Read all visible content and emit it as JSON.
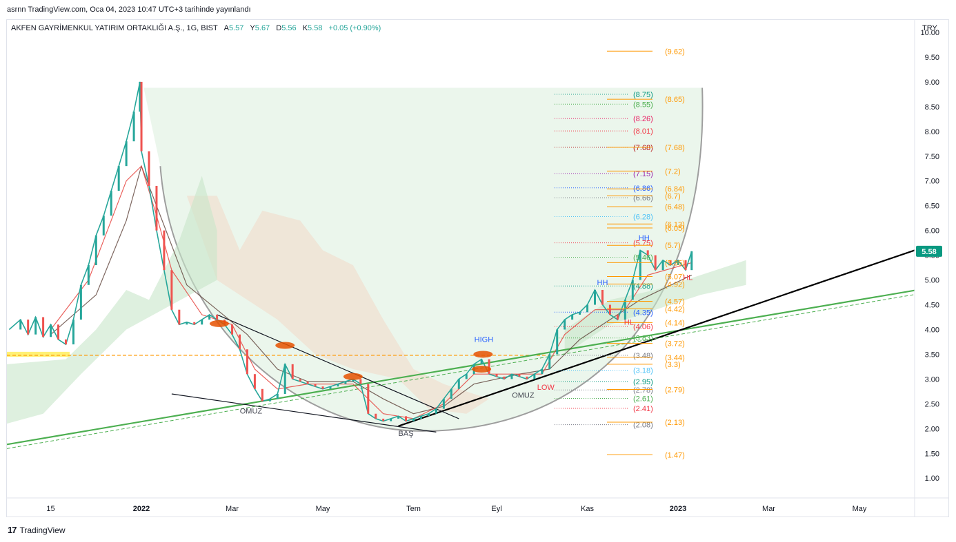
{
  "header": {
    "published": "asrnn TradingView.com, Oca 04, 2023 10:47 UTC+3 tarihinde yayınlandı"
  },
  "legend": {
    "symbol": "AKFEN GAYRİMENKUL YATIRIM ORTAKLIĞI A.Ş., 1G, BIST",
    "open_label": "A",
    "open": "5.57",
    "high_label": "Y",
    "high": "5.67",
    "low_label": "D",
    "low": "5.56",
    "close_label": "K",
    "close": "5.58",
    "change": "+0.05 (+0.90%)"
  },
  "footer": {
    "brand": "TradingView",
    "logo": "17"
  },
  "chart_data": {
    "type": "line",
    "currency": "TRY",
    "last_price": 5.58,
    "y_ticks": [
      "10.00",
      "9.50",
      "9.00",
      "8.50",
      "8.00",
      "7.50",
      "7.00",
      "6.50",
      "6.00",
      "5.50",
      "5.00",
      "4.50",
      "4.00",
      "3.50",
      "3.00",
      "2.50",
      "2.00",
      "1.50",
      "1.00"
    ],
    "ylim": [
      0.6,
      10.25
    ],
    "x_ticks": [
      {
        "label": "15",
        "i": 0
      },
      {
        "label": "2022",
        "i": 12
      },
      {
        "label": "Mar",
        "i": 24
      },
      {
        "label": "May",
        "i": 36
      },
      {
        "label": "Tem",
        "i": 48
      },
      {
        "label": "Eyl",
        "i": 59
      },
      {
        "label": "Kas",
        "i": 71
      },
      {
        "label": "2023",
        "i": 83
      },
      {
        "label": "Mar",
        "i": 95
      },
      {
        "label": "May",
        "i": 107
      }
    ],
    "x_range": [
      -5.8,
      114.3
    ],
    "price": [
      {
        "i": -5.5,
        "v": 4.0
      },
      {
        "i": -4,
        "v": 4.2
      },
      {
        "i": -3,
        "v": 3.9
      },
      {
        "i": -2,
        "v": 4.25
      },
      {
        "i": -1,
        "v": 3.85
      },
      {
        "i": 0,
        "v": 4.1
      },
      {
        "i": 1,
        "v": 3.8
      },
      {
        "i": 2,
        "v": 3.7
      },
      {
        "i": 3,
        "v": 4.2
      },
      {
        "i": 4,
        "v": 4.9
      },
      {
        "i": 5,
        "v": 5.3
      },
      {
        "i": 6,
        "v": 5.9
      },
      {
        "i": 7,
        "v": 6.3
      },
      {
        "i": 8,
        "v": 6.8
      },
      {
        "i": 9,
        "v": 7.3
      },
      {
        "i": 10,
        "v": 7.8
      },
      {
        "i": 11,
        "v": 8.4
      },
      {
        "i": 11.8,
        "v": 9.0
      },
      {
        "i": 12,
        "v": 7.6
      },
      {
        "i": 13,
        "v": 6.9
      },
      {
        "i": 14,
        "v": 6.0
      },
      {
        "i": 15,
        "v": 5.2
      },
      {
        "i": 16,
        "v": 4.4
      },
      {
        "i": 17,
        "v": 4.1
      },
      {
        "i": 18,
        "v": 4.15
      },
      {
        "i": 19,
        "v": 4.1
      },
      {
        "i": 20,
        "v": 4.2
      },
      {
        "i": 21,
        "v": 4.3
      },
      {
        "i": 22,
        "v": 4.2
      },
      {
        "i": 23,
        "v": 4.1
      },
      {
        "i": 24,
        "v": 3.9
      },
      {
        "i": 25,
        "v": 3.6
      },
      {
        "i": 26,
        "v": 3.1
      },
      {
        "i": 27,
        "v": 2.8
      },
      {
        "i": 28,
        "v": 2.55
      },
      {
        "i": 29,
        "v": 2.6
      },
      {
        "i": 30,
        "v": 2.7
      },
      {
        "i": 31,
        "v": 3.3
      },
      {
        "i": 32,
        "v": 3.0
      },
      {
        "i": 33,
        "v": 2.95
      },
      {
        "i": 34,
        "v": 2.9
      },
      {
        "i": 35,
        "v": 2.85
      },
      {
        "i": 36,
        "v": 2.8
      },
      {
        "i": 37,
        "v": 2.85
      },
      {
        "i": 38,
        "v": 2.9
      },
      {
        "i": 39,
        "v": 2.95
      },
      {
        "i": 40,
        "v": 3.0
      },
      {
        "i": 41,
        "v": 2.9
      },
      {
        "i": 42,
        "v": 2.3
      },
      {
        "i": 43,
        "v": 2.2
      },
      {
        "i": 44,
        "v": 2.15
      },
      {
        "i": 45,
        "v": 2.2
      },
      {
        "i": 46,
        "v": 2.25
      },
      {
        "i": 47,
        "v": 2.15
      },
      {
        "i": 48,
        "v": 2.2
      },
      {
        "i": 49,
        "v": 2.25
      },
      {
        "i": 50,
        "v": 2.3
      },
      {
        "i": 51,
        "v": 2.4
      },
      {
        "i": 52,
        "v": 2.6
      },
      {
        "i": 53,
        "v": 2.8
      },
      {
        "i": 54,
        "v": 3.0
      },
      {
        "i": 55,
        "v": 3.1
      },
      {
        "i": 56,
        "v": 3.3
      },
      {
        "i": 57,
        "v": 3.4
      },
      {
        "i": 58,
        "v": 3.1
      },
      {
        "i": 59,
        "v": 3.05
      },
      {
        "i": 60,
        "v": 3.0
      },
      {
        "i": 61,
        "v": 3.1
      },
      {
        "i": 62,
        "v": 3.05
      },
      {
        "i": 63,
        "v": 3.0
      },
      {
        "i": 64,
        "v": 3.1
      },
      {
        "i": 65,
        "v": 3.2
      },
      {
        "i": 66,
        "v": 3.5
      },
      {
        "i": 67,
        "v": 4.0
      },
      {
        "i": 68,
        "v": 4.2
      },
      {
        "i": 69,
        "v": 4.3
      },
      {
        "i": 70,
        "v": 4.35
      },
      {
        "i": 71,
        "v": 4.5
      },
      {
        "i": 72,
        "v": 4.8
      },
      {
        "i": 73,
        "v": 4.5
      },
      {
        "i": 74,
        "v": 4.3
      },
      {
        "i": 75,
        "v": 4.2
      },
      {
        "i": 76,
        "v": 4.6
      },
      {
        "i": 77,
        "v": 5.0
      },
      {
        "i": 78,
        "v": 5.6
      },
      {
        "i": 79,
        "v": 5.5
      },
      {
        "i": 80,
        "v": 5.2
      },
      {
        "i": 81,
        "v": 5.4
      },
      {
        "i": 82,
        "v": 5.3
      },
      {
        "i": 83,
        "v": 5.4
      },
      {
        "i": 84,
        "v": 5.2
      },
      {
        "i": 84.8,
        "v": 5.58
      }
    ],
    "ema_fast": [
      {
        "i": 0,
        "v": 4.0
      },
      {
        "i": 5,
        "v": 5.0
      },
      {
        "i": 10,
        "v": 7.0
      },
      {
        "i": 12,
        "v": 7.3
      },
      {
        "i": 14,
        "v": 6.3
      },
      {
        "i": 16,
        "v": 5.2
      },
      {
        "i": 20,
        "v": 4.3
      },
      {
        "i": 24,
        "v": 4.1
      },
      {
        "i": 27,
        "v": 3.2
      },
      {
        "i": 30,
        "v": 2.8
      },
      {
        "i": 34,
        "v": 2.9
      },
      {
        "i": 40,
        "v": 2.9
      },
      {
        "i": 44,
        "v": 2.3
      },
      {
        "i": 48,
        "v": 2.2
      },
      {
        "i": 52,
        "v": 2.5
      },
      {
        "i": 56,
        "v": 3.1
      },
      {
        "i": 60,
        "v": 3.1
      },
      {
        "i": 65,
        "v": 3.1
      },
      {
        "i": 68,
        "v": 3.9
      },
      {
        "i": 72,
        "v": 4.4
      },
      {
        "i": 76,
        "v": 4.4
      },
      {
        "i": 79,
        "v": 5.1
      },
      {
        "i": 84.8,
        "v": 5.35
      }
    ],
    "ema_slow": [
      {
        "i": 0,
        "v": 3.9
      },
      {
        "i": 6,
        "v": 4.7
      },
      {
        "i": 10,
        "v": 6.2
      },
      {
        "i": 12,
        "v": 7.3
      },
      {
        "i": 15,
        "v": 6.1
      },
      {
        "i": 18,
        "v": 4.9
      },
      {
        "i": 22,
        "v": 4.4
      },
      {
        "i": 26,
        "v": 3.9
      },
      {
        "i": 30,
        "v": 3.2
      },
      {
        "i": 34,
        "v": 2.95
      },
      {
        "i": 40,
        "v": 2.95
      },
      {
        "i": 44,
        "v": 2.6
      },
      {
        "i": 48,
        "v": 2.3
      },
      {
        "i": 52,
        "v": 2.45
      },
      {
        "i": 56,
        "v": 2.9
      },
      {
        "i": 62,
        "v": 3.1
      },
      {
        "i": 66,
        "v": 3.2
      },
      {
        "i": 70,
        "v": 3.8
      },
      {
        "i": 74,
        "v": 4.2
      },
      {
        "i": 78,
        "v": 4.6
      },
      {
        "i": 84.8,
        "v": 5.1
      }
    ],
    "fib_left": [
      {
        "label": "(8.75)",
        "v": 8.75,
        "color": "#089981"
      },
      {
        "label": "(8.55)",
        "v": 8.55,
        "color": "#4caf50"
      },
      {
        "label": "(8.26)",
        "v": 8.26,
        "color": "#e91e63"
      },
      {
        "label": "(8.01)",
        "v": 8.01,
        "color": "#f23645"
      },
      {
        "label": "(7.68)",
        "v": 7.68,
        "color": "#b71c1c"
      },
      {
        "label": "(7.15)",
        "v": 7.15,
        "color": "#9c27b0"
      },
      {
        "label": "(6.86)",
        "v": 6.86,
        "color": "#2962ff"
      },
      {
        "label": "(6.66)",
        "v": 6.66,
        "color": "#787b86"
      },
      {
        "label": "(6.28)",
        "v": 6.28,
        "color": "#4fc3f7"
      },
      {
        "label": "(5.75)",
        "v": 5.75,
        "color": "#f23645"
      },
      {
        "label": "(5.46)",
        "v": 5.46,
        "color": "#4caf50"
      },
      {
        "label": "(4.88)",
        "v": 4.88,
        "color": "#089981"
      },
      {
        "label": "(4.35)",
        "v": 4.35,
        "color": "#2962ff"
      },
      {
        "label": "(4.06)",
        "v": 4.06,
        "color": "#f23645"
      },
      {
        "label": "(3.83)",
        "v": 3.83,
        "color": "#4caf50"
      },
      {
        "label": "(3.48)",
        "v": 3.48,
        "color": "#787b86"
      },
      {
        "label": "(3.18)",
        "v": 3.18,
        "color": "#4fc3f7"
      },
      {
        "label": "(2.95)",
        "v": 2.95,
        "color": "#089981"
      },
      {
        "label": "(2.78)",
        "v": 2.78,
        "color": "#787b86"
      },
      {
        "label": "(2.61)",
        "v": 2.61,
        "color": "#4caf50"
      },
      {
        "label": "(2.41)",
        "v": 2.41,
        "color": "#f23645"
      },
      {
        "label": "(2.08)",
        "v": 2.08,
        "color": "#787b86"
      }
    ],
    "fib_right": [
      {
        "label": "(9.62)",
        "v": 9.62
      },
      {
        "label": "(8.65)",
        "v": 8.65
      },
      {
        "label": "(7.68)",
        "v": 7.68
      },
      {
        "label": "(7.2)",
        "v": 7.2
      },
      {
        "label": "(6.84)",
        "v": 6.84
      },
      {
        "label": "(6.7)",
        "v": 6.7
      },
      {
        "label": "(6.48)",
        "v": 6.48
      },
      {
        "label": "(6.05)",
        "v": 6.05
      },
      {
        "label": "(6.13)",
        "v": 6.13
      },
      {
        "label": "(5.7)",
        "v": 5.7
      },
      {
        "label": "(5.35)",
        "v": 5.35
      },
      {
        "label": "(5.07)",
        "v": 5.07
      },
      {
        "label": "(4.92)",
        "v": 4.92
      },
      {
        "label": "(4.57)",
        "v": 4.57
      },
      {
        "label": "(4.42)",
        "v": 4.42
      },
      {
        "label": "(4.14)",
        "v": 4.14
      },
      {
        "label": "(3.72)",
        "v": 3.72
      },
      {
        "label": "(3.44)",
        "v": 3.44
      },
      {
        "label": "(3.3)",
        "v": 3.3
      },
      {
        "label": "(2.79)",
        "v": 2.79
      },
      {
        "label": "(2.13)",
        "v": 2.13
      },
      {
        "label": "(1.47)",
        "v": 1.47
      }
    ],
    "annotations": [
      {
        "text": "OMUZ",
        "i": 26.5,
        "v": 2.3,
        "color": "#434651"
      },
      {
        "text": "BAŞ",
        "i": 47,
        "v": 1.85,
        "color": "#434651"
      },
      {
        "text": "OMUZ",
        "i": 62.5,
        "v": 2.62,
        "color": "#434651"
      },
      {
        "text": "LOW",
        "i": 65.5,
        "v": 2.78,
        "color": "#f23645"
      },
      {
        "text": "HIGH",
        "i": 57.3,
        "v": 3.75,
        "color": "#2962ff"
      },
      {
        "text": "HH",
        "i": 73,
        "v": 4.9,
        "color": "#2962ff"
      },
      {
        "text": "HH",
        "i": 78.5,
        "v": 5.8,
        "color": "#2962ff"
      },
      {
        "text": "HL",
        "i": 76.5,
        "v": 4.1,
        "color": "#f23645"
      },
      {
        "text": "HL",
        "i": 84.3,
        "v": 5.0,
        "color": "#f23645"
      }
    ],
    "trend_lines": [
      {
        "name": "green-support",
        "from": {
          "i": -5.8,
          "v": 1.68
        },
        "to": {
          "i": 114.3,
          "v": 4.79
        },
        "color": "#4caf50"
      },
      {
        "name": "black-trend",
        "from": {
          "i": 46,
          "v": 2.05
        },
        "to": {
          "i": 114.3,
          "v": 5.6
        },
        "color": "#000000"
      },
      {
        "name": "neck-upper",
        "from": {
          "i": 22,
          "v": 4.3
        },
        "to": {
          "i": 54,
          "v": 2.2
        },
        "color": "#131722"
      },
      {
        "name": "neck-lower",
        "from": {
          "i": 16,
          "v": 2.7
        },
        "to": {
          "i": 51,
          "v": 1.93
        },
        "color": "#131722"
      }
    ],
    "horizontal_level": 3.48,
    "grid": false,
    "legend_position": "top-left"
  }
}
